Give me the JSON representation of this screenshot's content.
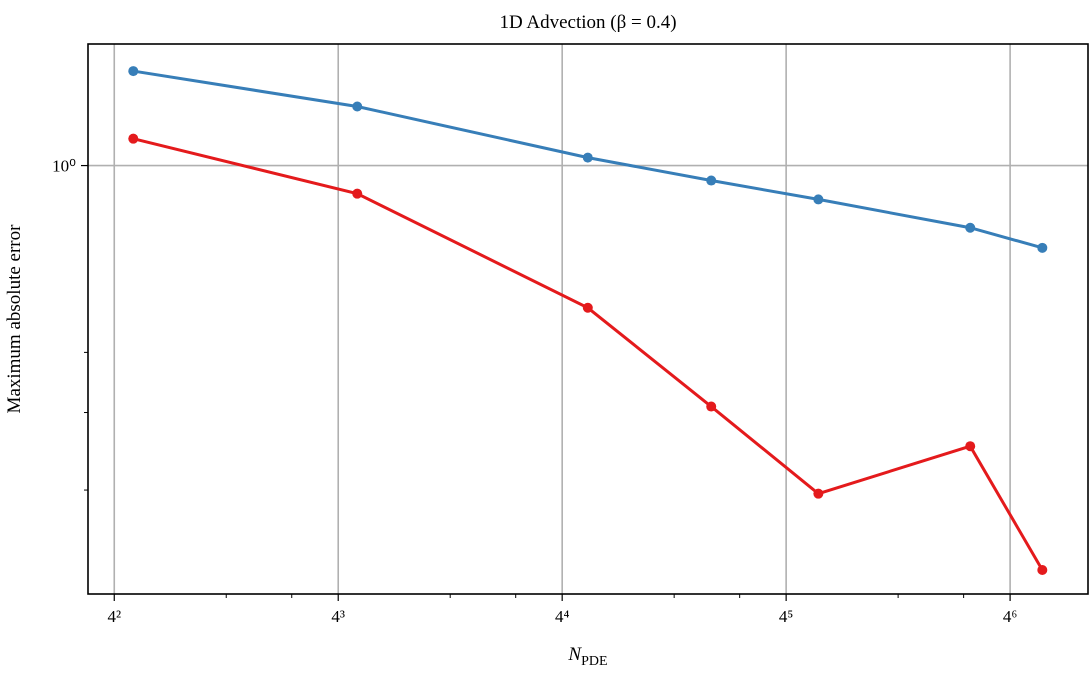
{
  "chart_data": {
    "type": "line",
    "title": "1D Advection (β = 0.4)",
    "xlabel": {
      "text": "N",
      "subscript": "PDE"
    },
    "ylabel": "Maximum absolute error",
    "xscale": "log",
    "xbase": 4,
    "yscale": "log",
    "ybase": 10,
    "x": [
      18,
      72,
      300,
      644,
      1250,
      3200,
      5000
    ],
    "series": [
      {
        "color": "#377eb8",
        "values": [
          1.42,
          1.245,
          1.03,
          0.946,
          0.882,
          0.794,
          0.737
        ]
      },
      {
        "color": "#e41a1c",
        "values": [
          1.105,
          0.901,
          0.59,
          0.409,
          0.296,
          0.353,
          0.223
        ]
      }
    ],
    "xlim": [
      13.6,
      6634
    ],
    "ylim": [
      0.204,
      1.57
    ],
    "xticks": [
      {
        "value": 16,
        "label": "4²"
      },
      {
        "value": 64,
        "label": "4³"
      },
      {
        "value": 256,
        "label": "4⁴"
      },
      {
        "value": 1024,
        "label": "4⁵"
      },
      {
        "value": 4096,
        "label": "4⁶"
      }
    ],
    "xminorticks": [
      32,
      48,
      128,
      192,
      512,
      768,
      2048,
      3072
    ],
    "yticks": [
      {
        "value": 1,
        "label": "10⁰"
      }
    ],
    "yminorticks": [
      0.3,
      0.4,
      0.5
    ],
    "grid": true
  }
}
